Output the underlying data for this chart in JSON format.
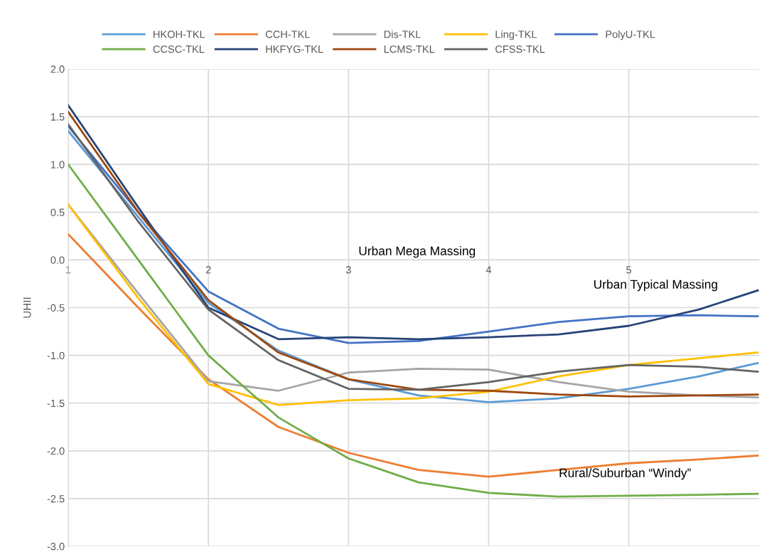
{
  "chart_data": {
    "type": "line",
    "ylabel": "UHII",
    "x": [
      1,
      1.5,
      2,
      2.5,
      3,
      3.5,
      4,
      4.5,
      5,
      5.5,
      5.92
    ],
    "series": [
      {
        "name": "HKOH-TKL",
        "color": "#5b9bd5",
        "values": [
          1.35,
          0.45,
          -0.45,
          -0.95,
          -1.25,
          -1.42,
          -1.49,
          -1.45,
          -1.35,
          -1.22,
          -1.08
        ]
      },
      {
        "name": "CCH-TKL",
        "color": "#ed7d31",
        "values": [
          0.27,
          -0.5,
          -1.25,
          -1.75,
          -2.02,
          -2.2,
          -2.27,
          -2.2,
          -2.13,
          -2.09,
          -2.05
        ]
      },
      {
        "name": "Dis-TKL",
        "color": "#a5a5a5",
        "values": [
          0.58,
          -0.35,
          -1.27,
          -1.37,
          -1.18,
          -1.14,
          -1.15,
          -1.28,
          -1.38,
          -1.42,
          -1.44
        ]
      },
      {
        "name": "Ling-TKL",
        "color": "#ffc000",
        "values": [
          0.58,
          -0.4,
          -1.3,
          -1.52,
          -1.47,
          -1.45,
          -1.38,
          -1.22,
          -1.1,
          -1.03,
          -0.97
        ]
      },
      {
        "name": "PolyU-TKL",
        "color": "#4472c4",
        "values": [
          1.4,
          0.5,
          -0.33,
          -0.72,
          -0.87,
          -0.85,
          -0.75,
          -0.65,
          -0.59,
          -0.58,
          -0.59
        ]
      },
      {
        "name": "CCSC-TKL",
        "color": "#70ad47",
        "values": [
          1.0,
          0.0,
          -1.0,
          -1.65,
          -2.08,
          -2.33,
          -2.44,
          -2.48,
          -2.47,
          -2.46,
          -2.45
        ]
      },
      {
        "name": "HKFYG-TKL",
        "color": "#264478",
        "values": [
          1.62,
          0.55,
          -0.5,
          -0.83,
          -0.81,
          -0.83,
          -0.81,
          -0.78,
          -0.69,
          -0.52,
          -0.32
        ]
      },
      {
        "name": "LCMS-TKL",
        "color": "#9e480e",
        "values": [
          1.55,
          0.5,
          -0.42,
          -0.97,
          -1.25,
          -1.36,
          -1.37,
          -1.41,
          -1.43,
          -1.42,
          -1.41
        ]
      },
      {
        "name": "CFSS-TKL",
        "color": "#636363",
        "values": [
          1.42,
          0.4,
          -0.52,
          -1.05,
          -1.35,
          -1.36,
          -1.28,
          -1.17,
          -1.1,
          -1.12,
          -1.17
        ]
      }
    ],
    "xlim": [
      1,
      5.93
    ],
    "xticks": [
      1,
      2,
      3,
      4,
      5
    ],
    "ylim": [
      -3,
      2
    ],
    "yticks": [
      {
        "value": -3,
        "label": "-3.0"
      },
      {
        "value": -2.5,
        "label": "-2.5"
      },
      {
        "value": -2,
        "label": "-2.0"
      },
      {
        "value": -1.5,
        "label": "-1.5"
      },
      {
        "value": -1,
        "label": "-1.0"
      },
      {
        "value": -0.5,
        "label": "-0.5"
      },
      {
        "value": 0,
        "label": "0.0"
      },
      {
        "value": 0.5,
        "label": "0.5"
      },
      {
        "value": 1,
        "label": "1.0"
      },
      {
        "value": 1.5,
        "label": "1.5"
      },
      {
        "value": 2,
        "label": "2.0"
      }
    ],
    "annotations": [
      "Urban Mega Massing",
      "Urban Typical Massing",
      "Rural/Suburban “Windy”"
    ],
    "grid": true,
    "legend": "top",
    "marker": "none",
    "line_style": "solid"
  }
}
